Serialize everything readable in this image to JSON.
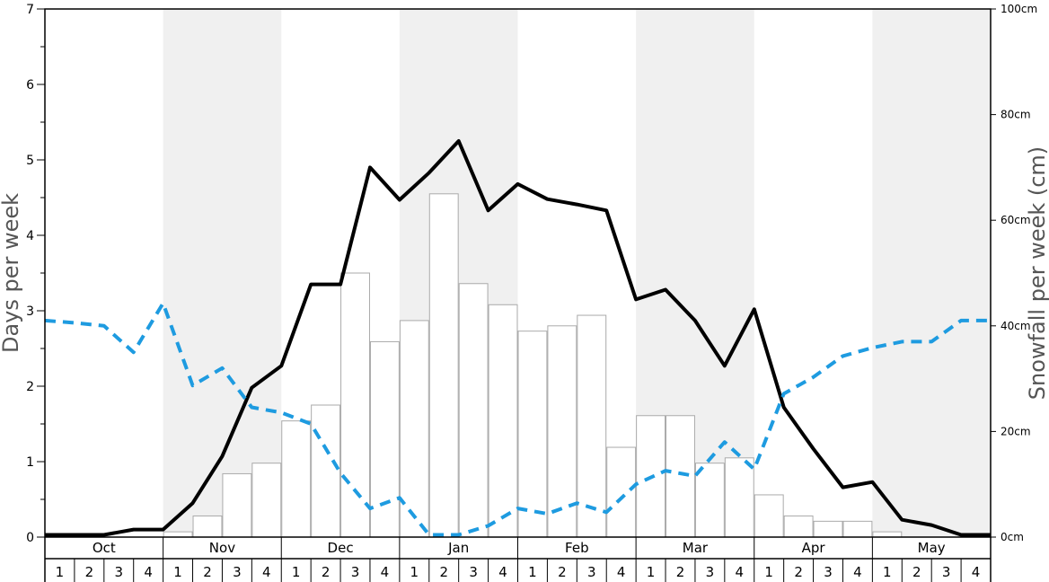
{
  "chart_data": {
    "type": "bar",
    "left_axis": {
      "label": "Days per week",
      "ylim": [
        0,
        7
      ],
      "ticks": [
        "0",
        "1",
        "2",
        "3",
        "4",
        "5",
        "6",
        "7"
      ]
    },
    "right_axis": {
      "label": "Snowfall per week (cm)",
      "ylim": [
        0,
        100
      ],
      "ticks": [
        "0cm",
        "20cm",
        "40cm",
        "60cm",
        "80cm",
        "100cm"
      ]
    },
    "months": [
      "Oct",
      "Nov",
      "Dec",
      "Jan",
      "Feb",
      "Mar",
      "Apr",
      "May"
    ],
    "week_labels": [
      "1",
      "2",
      "3",
      "4"
    ],
    "grid": false,
    "shaded_months": [
      "Nov",
      "Jan",
      "Mar",
      "May"
    ],
    "colors": {
      "shade": "#f0f0f0",
      "bar_fill": "#ffffff",
      "bar_stroke": "#aaaaaa",
      "line_solid": "#000000",
      "line_dashed": "#1e9be0",
      "axis_label": "#555555"
    },
    "series": [
      {
        "type": "bar",
        "axis": "right",
        "values": [
          0,
          0,
          0,
          0,
          1,
          4,
          12,
          14,
          22,
          25,
          50,
          37,
          41,
          65,
          48,
          44,
          39,
          40,
          42,
          17,
          23,
          23,
          14,
          15,
          8,
          4,
          3,
          3,
          1,
          0,
          0,
          0
        ]
      },
      {
        "type": "line",
        "style": "solid",
        "axis": "left",
        "values": [
          0.03,
          0.03,
          0.03,
          0.1,
          0.1,
          0.45,
          1.07,
          1.98,
          2.27,
          3.35,
          3.35,
          4.9,
          4.47,
          4.83,
          5.25,
          4.33,
          4.68,
          4.48,
          4.41,
          4.33,
          3.15,
          3.28,
          2.87,
          2.27,
          3.02,
          1.72,
          1.17,
          0.66,
          0.73,
          0.23,
          0.16,
          0.03,
          0.03
        ]
      },
      {
        "type": "line",
        "style": "dashed",
        "axis": "left",
        "values": [
          2.87,
          2.84,
          2.8,
          2.45,
          3.1,
          2.01,
          2.24,
          1.72,
          1.65,
          1.5,
          0.85,
          0.38,
          0.52,
          0.03,
          0.03,
          0.15,
          0.38,
          0.31,
          0.45,
          0.33,
          0.7,
          0.88,
          0.81,
          1.26,
          0.9,
          1.9,
          2.12,
          2.4,
          2.51,
          2.59,
          2.59,
          2.87,
          2.87
        ]
      }
    ]
  }
}
